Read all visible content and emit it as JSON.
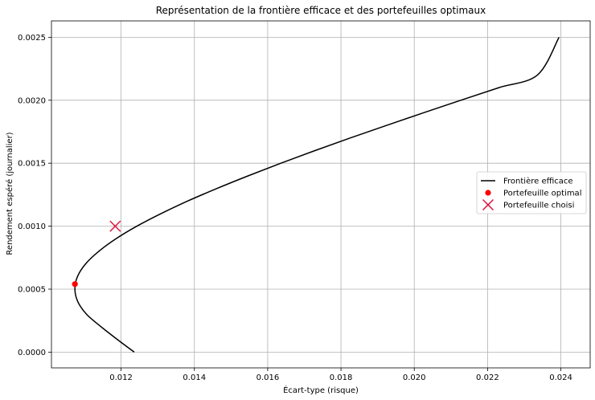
{
  "chart_data": {
    "type": "line",
    "title": "Représentation de la frontière efficace et des portefeuilles optimaux",
    "xlabel": "Écart-type (risque)",
    "ylabel": "Rendement espéré (journalier)",
    "xlim": [
      0.0101,
      0.0248
    ],
    "ylim": [
      -0.000125,
      0.00263
    ],
    "xticks": [
      "0.012",
      "0.014",
      "0.016",
      "0.018",
      "0.020",
      "0.022",
      "0.024"
    ],
    "yticks": [
      "0.0000",
      "0.0005",
      "0.0010",
      "0.0015",
      "0.0020",
      "0.0025"
    ],
    "xtick_values": [
      0.012,
      0.014,
      0.016,
      0.018,
      0.02,
      0.022,
      0.024
    ],
    "ytick_values": [
      0.0,
      0.0005,
      0.001,
      0.0015,
      0.002,
      0.0025
    ],
    "grid": true,
    "legend_position": "right",
    "series": [
      {
        "name": "Frontière efficace",
        "kind": "line",
        "color": "#000000",
        "x": [
          0.01236,
          0.0119,
          0.01146,
          0.01106,
          0.01082,
          0.01074,
          0.01081,
          0.01103,
          0.01139,
          0.01186,
          0.01243,
          0.01309,
          0.01382,
          0.01462,
          0.01547,
          0.01636,
          0.01729,
          0.01825,
          0.01924,
          0.02025,
          0.02127,
          0.02231,
          0.02336,
          0.02395
        ],
        "y": [
          0.0,
          0.0001,
          0.0002,
          0.0003,
          0.0004,
          0.0005,
          0.0006,
          0.0007,
          0.0008,
          0.0009,
          0.001,
          0.0011,
          0.0012,
          0.0013,
          0.0014,
          0.0015,
          0.0016,
          0.0017,
          0.0018,
          0.0019,
          0.002,
          0.0021,
          0.0022,
          0.0025
        ]
      },
      {
        "name": "Portefeuille optimal",
        "kind": "scatter",
        "marker": "circle",
        "color": "#ff0000",
        "x": [
          0.01074
        ],
        "y": [
          0.00054
        ]
      },
      {
        "name": "Portefeuille choisi",
        "kind": "scatter",
        "marker": "x",
        "color": "#dc143c",
        "x": [
          0.01184
        ],
        "y": [
          0.001
        ]
      }
    ]
  }
}
